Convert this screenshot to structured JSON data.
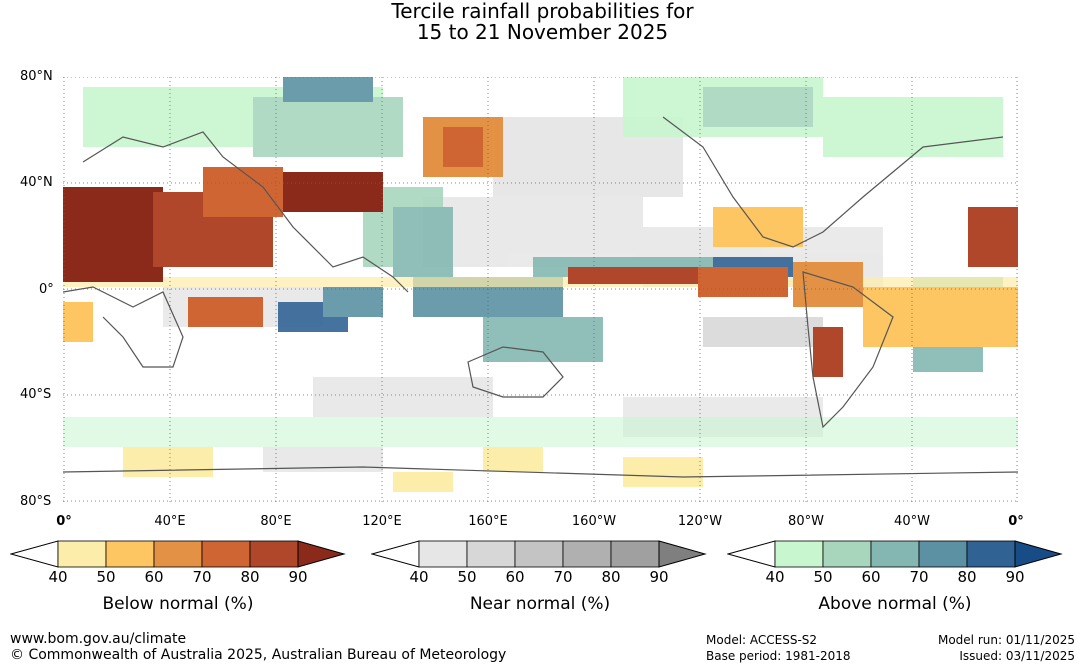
{
  "title": {
    "line1": "Tercile rainfall probabilities for",
    "line2": "15 to 21 November 2025"
  },
  "map": {
    "lat_labels": [
      "80°N",
      "40°N",
      "0°",
      "40°S",
      "80°S"
    ],
    "lon_labels": [
      "0°",
      "40°E",
      "80°E",
      "120°E",
      "160°E",
      "160°W",
      "120°W",
      "80°W",
      "40°W",
      "0°"
    ]
  },
  "legends": [
    {
      "title": "Below normal (%)",
      "ticks": [
        "40",
        "50",
        "60",
        "70",
        "80",
        "90"
      ],
      "colors": [
        "#fdedaa",
        "#fdc663",
        "#e29145",
        "#cf6532",
        "#b0472a",
        "#8b2a1b"
      ]
    },
    {
      "title": "Near normal (%)",
      "ticks": [
        "40",
        "50",
        "60",
        "70",
        "80",
        "90"
      ],
      "colors": [
        "#e6e6e6",
        "#d7d7d7",
        "#c4c4c4",
        "#b0b0b0",
        "#a0a0a0",
        "#7f7f7f"
      ]
    },
    {
      "title": "Above normal (%)",
      "ticks": [
        "40",
        "50",
        "60",
        "70",
        "80",
        "90"
      ],
      "colors": [
        "#c8f6ce",
        "#a7d6bd",
        "#84b7b2",
        "#5b91a2",
        "#306294",
        "#174c86"
      ]
    }
  ],
  "footer": {
    "url": "www.bom.gov.au/climate",
    "copyright": "© Commonwealth of Australia 2025, Australian Bureau of Meteorology",
    "model": "Model: ACCESS-S2",
    "base_period": "Base period: 1981-2018",
    "model_run": "Model run: 01/11/2025",
    "issued": "Issued: 03/11/2025"
  }
}
